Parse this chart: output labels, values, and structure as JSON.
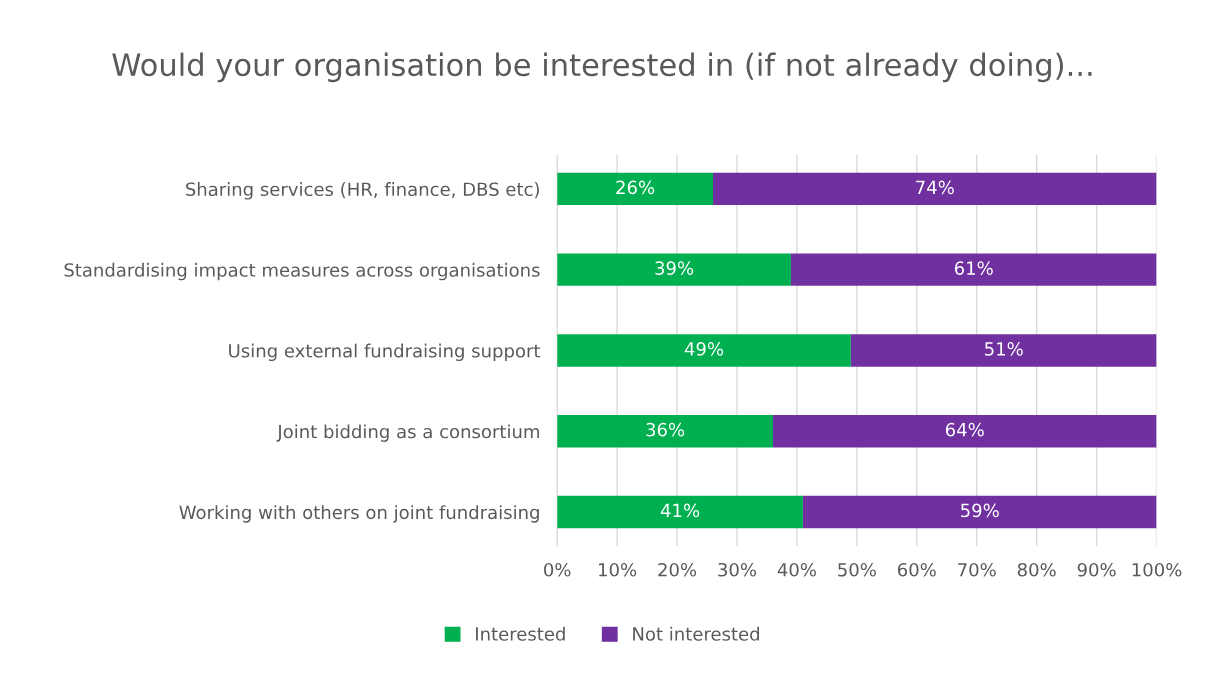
{
  "chart_data": {
    "type": "bar",
    "orientation": "horizontal",
    "stacked": true,
    "title": "Would your organisation be interested in (if not already doing)...",
    "categories": [
      "Sharing services (HR, finance, DBS etc)",
      "Standardising impact measures across organisations",
      "Using external fundraising support",
      "Joint bidding as a consortium",
      "Working with others on joint fundraising"
    ],
    "series": [
      {
        "name": "Interested",
        "color": "#00b050",
        "values": [
          26,
          39,
          49,
          36,
          41
        ],
        "value_labels": [
          "26%",
          "39%",
          "49%",
          "36%",
          "41%"
        ]
      },
      {
        "name": "Not interested",
        "color": "#7030a0",
        "values": [
          74,
          61,
          51,
          64,
          59
        ],
        "value_labels": [
          "74%",
          "61%",
          "51%",
          "64%",
          "59%"
        ]
      }
    ],
    "xlim": [
      0,
      100
    ],
    "xticks": [
      {
        "value": 0,
        "label": "0%"
      },
      {
        "value": 10,
        "label": "10%"
      },
      {
        "value": 20,
        "label": "20%"
      },
      {
        "value": 30,
        "label": "30%"
      },
      {
        "value": 40,
        "label": "40%"
      },
      {
        "value": 50,
        "label": "50%"
      },
      {
        "value": 60,
        "label": "60%"
      },
      {
        "value": 70,
        "label": "70%"
      },
      {
        "value": 80,
        "label": "80%"
      },
      {
        "value": 90,
        "label": "90%"
      },
      {
        "value": 100,
        "label": "100%"
      }
    ],
    "grid": "x",
    "legend": "bottom"
  }
}
